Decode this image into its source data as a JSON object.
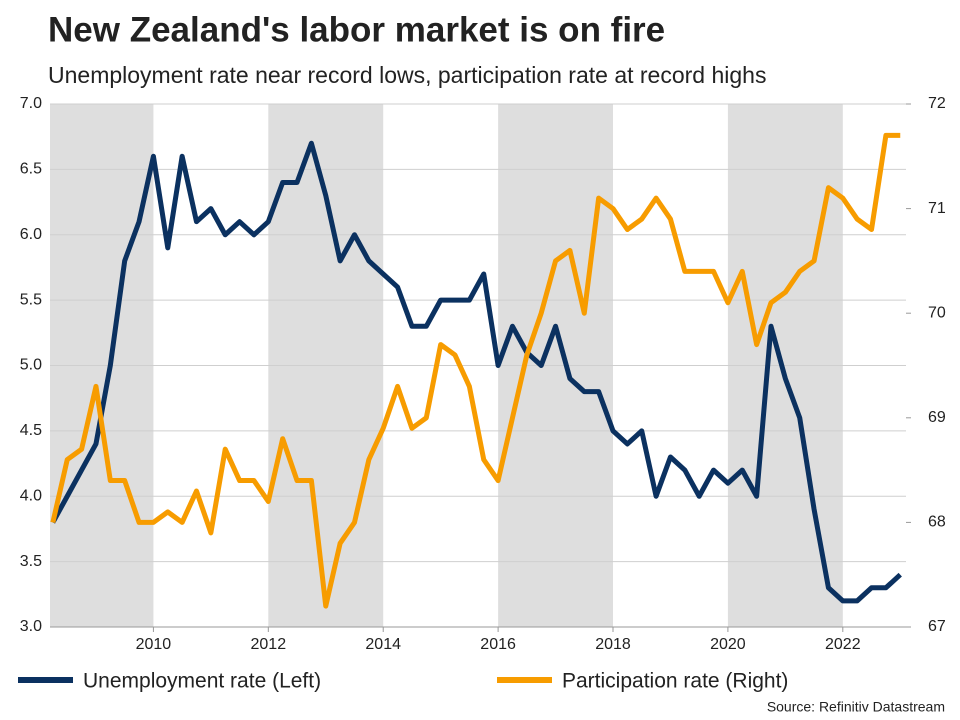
{
  "chart_data": {
    "type": "line",
    "title": "New Zealand's labor market is on fire",
    "subtitle": "Unemployment rate near record lows, participation rate at record highs",
    "source": "Source: Refinitiv Datastream",
    "x": [
      2008.25,
      2008.5,
      2008.75,
      2009,
      2009.25,
      2009.5,
      2009.75,
      2010,
      2010.25,
      2010.5,
      2010.75,
      2011,
      2011.25,
      2011.5,
      2011.75,
      2012,
      2012.25,
      2012.5,
      2012.75,
      2013,
      2013.25,
      2013.5,
      2013.75,
      2014,
      2014.25,
      2014.5,
      2014.75,
      2015,
      2015.25,
      2015.5,
      2015.75,
      2016,
      2016.25,
      2016.5,
      2016.75,
      2017,
      2017.25,
      2017.5,
      2017.75,
      2018,
      2018.25,
      2018.5,
      2018.75,
      2019,
      2019.25,
      2019.5,
      2019.75,
      2020,
      2020.25,
      2020.5,
      2020.75,
      2021,
      2021.25,
      2021.5,
      2021.75,
      2022,
      2022.25,
      2022.5,
      2022.75,
      2023
    ],
    "series": [
      {
        "name": "Unemployment rate (Left)",
        "color": "#0b3160",
        "axis": "y",
        "values": [
          3.8,
          4.0,
          4.2,
          4.4,
          5.0,
          5.8,
          6.1,
          6.6,
          5.9,
          6.6,
          6.1,
          6.2,
          6.0,
          6.1,
          6.0,
          6.1,
          6.4,
          6.4,
          6.7,
          6.3,
          5.8,
          6.0,
          5.8,
          5.7,
          5.6,
          5.3,
          5.3,
          5.5,
          5.5,
          5.5,
          5.7,
          5.0,
          5.3,
          5.1,
          5.0,
          5.3,
          4.9,
          4.8,
          4.8,
          4.5,
          4.4,
          4.5,
          4.0,
          4.3,
          4.2,
          4.0,
          4.2,
          4.1,
          4.2,
          4.0,
          5.3,
          4.9,
          4.6,
          3.9,
          3.3,
          3.2,
          3.2,
          3.3,
          3.3,
          3.4
        ]
      },
      {
        "name": "Participation rate (Right)",
        "color": "#f79c00",
        "axis": "y2",
        "values": [
          68.0,
          68.6,
          68.7,
          69.3,
          68.4,
          68.4,
          68.0,
          68.0,
          68.1,
          68.0,
          68.3,
          67.9,
          68.7,
          68.4,
          68.4,
          68.2,
          68.8,
          68.4,
          68.4,
          67.2,
          67.8,
          68.0,
          68.6,
          68.9,
          69.3,
          68.9,
          69.0,
          69.7,
          69.6,
          69.3,
          68.6,
          68.4,
          69.0,
          69.6,
          70.0,
          70.5,
          70.6,
          70.0,
          71.1,
          71.0,
          70.8,
          70.9,
          71.1,
          70.9,
          70.4,
          70.4,
          70.4,
          70.1,
          70.4,
          69.7,
          70.1,
          70.2,
          70.4,
          70.5,
          71.2,
          71.1,
          70.9,
          70.8,
          71.7,
          71.7
        ]
      }
    ],
    "xlim": [
      2008.2,
      2023.1
    ],
    "xticks": [
      2010,
      2012,
      2014,
      2016,
      2018,
      2020,
      2022
    ],
    "ylim": [
      3,
      7
    ],
    "yticks": [
      {
        "value": 3,
        "label": "3.0"
      },
      {
        "value": 3.5,
        "label": "3.5"
      },
      {
        "value": 4,
        "label": "4.0"
      },
      {
        "value": 4.5,
        "label": "4.5"
      },
      {
        "value": 5,
        "label": "5.0"
      },
      {
        "value": 5.5,
        "label": "5.5"
      },
      {
        "value": 6,
        "label": "6.0"
      },
      {
        "value": 6.5,
        "label": "6.5"
      },
      {
        "value": 7,
        "label": "7.0"
      }
    ],
    "y2lim": [
      67,
      72
    ],
    "y2ticks": [
      67,
      68,
      69,
      70,
      71,
      72
    ],
    "grid": true
  }
}
